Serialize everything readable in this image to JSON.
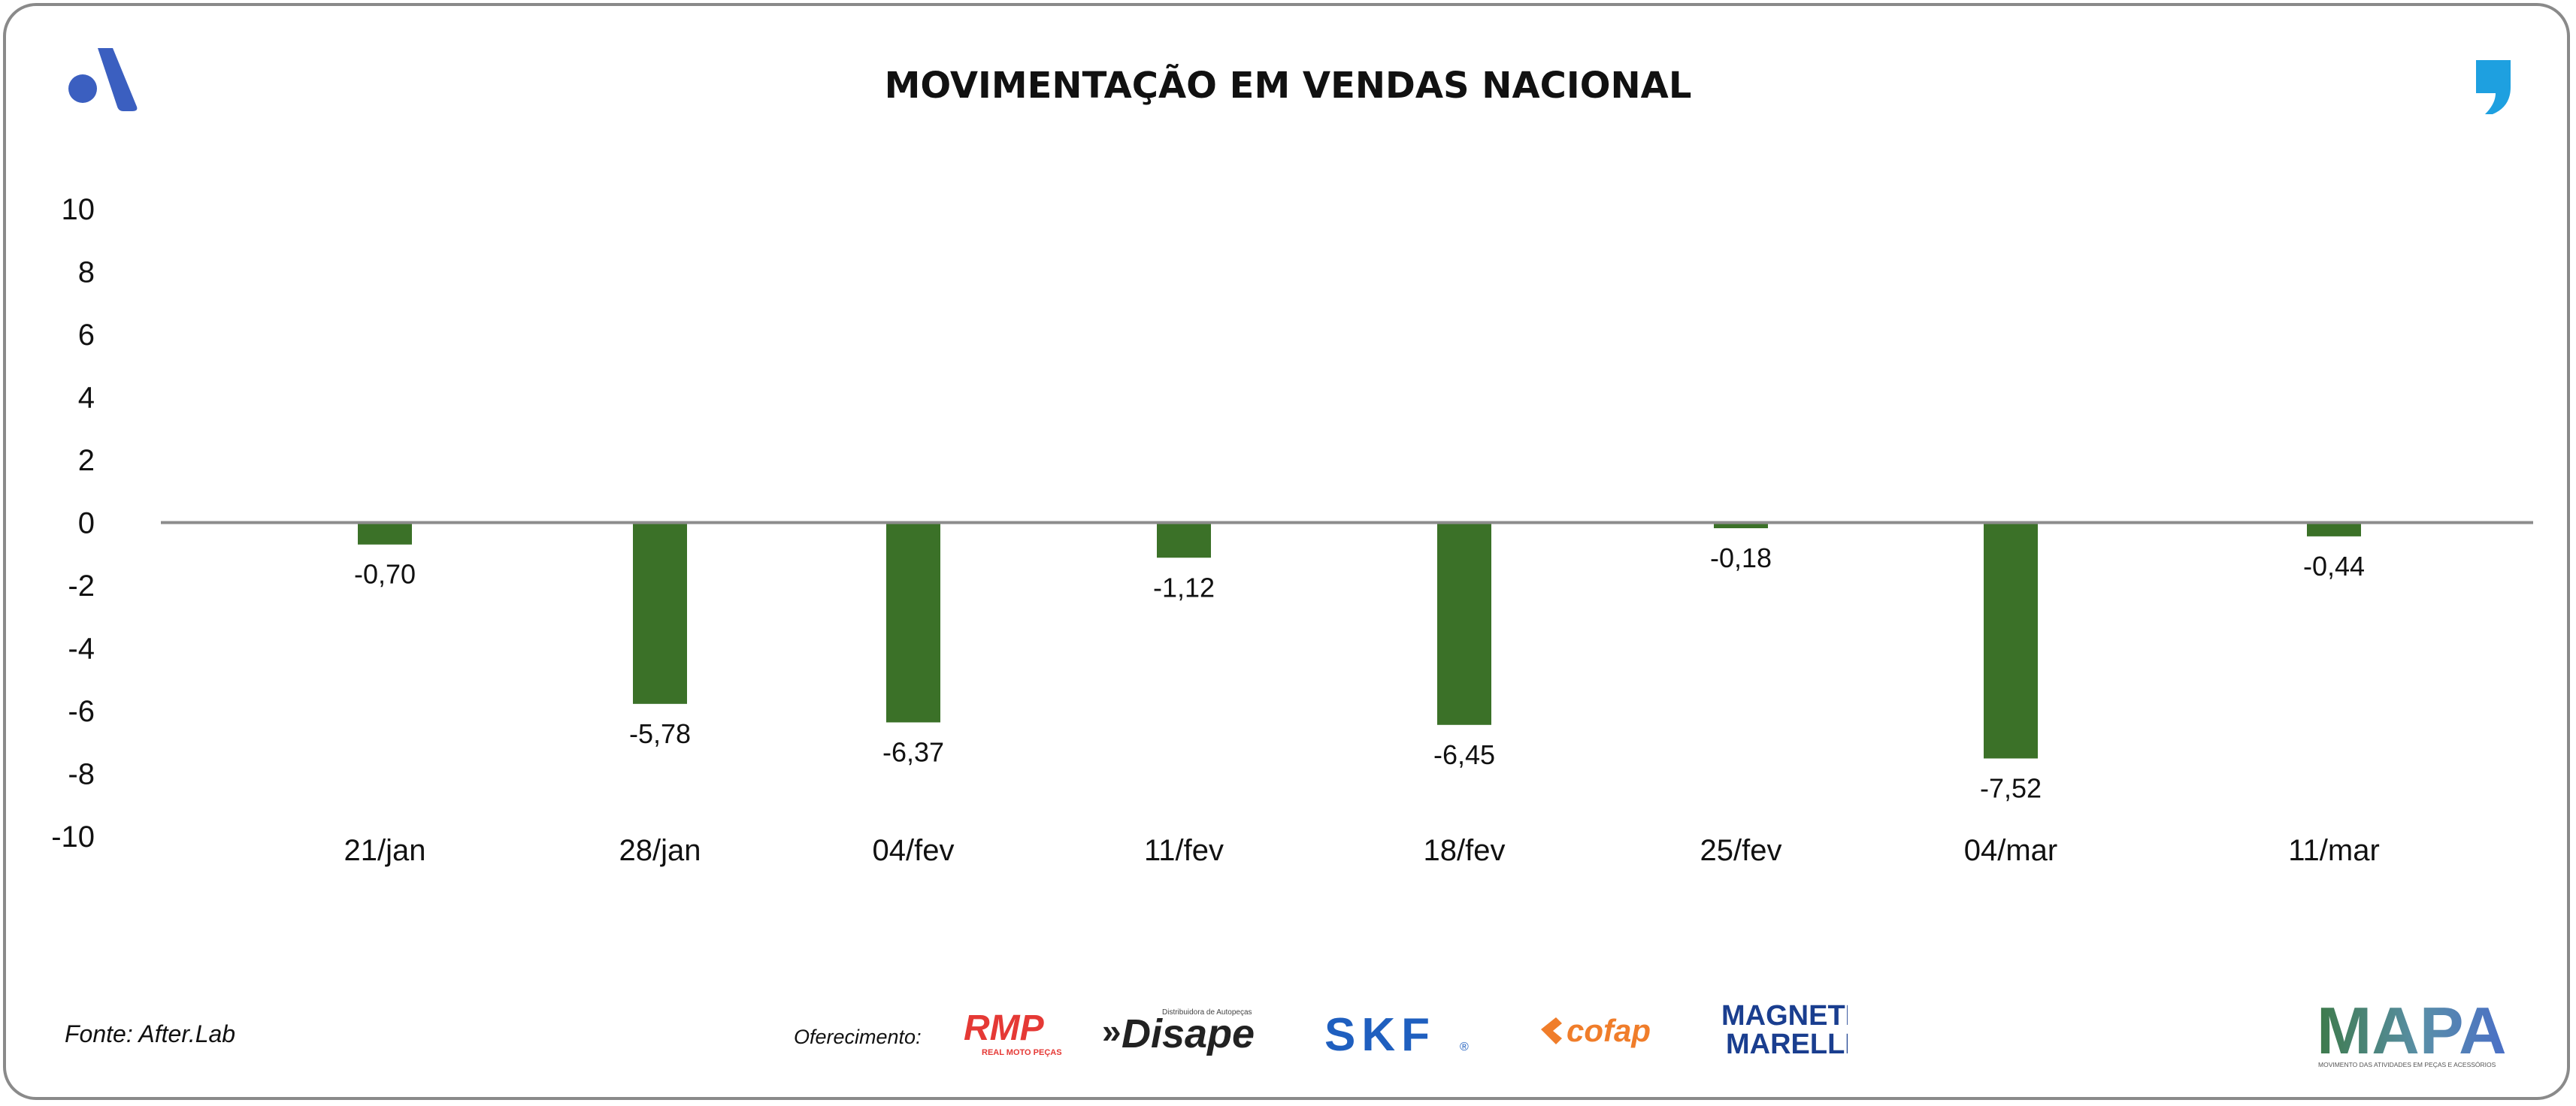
{
  "header": {
    "title": "MOVIMENTAÇÃO EM VENDAS NACIONAL"
  },
  "footer": {
    "source": "Fonte: After.Lab",
    "sponsor_label": "Oferecimento:",
    "sponsors": [
      {
        "name": "RMP",
        "sub": "REAL MOTO PEÇAS",
        "color": "#e53935"
      },
      {
        "name": "Disape",
        "sub": "Distribuidora de Autopeças",
        "color": "#222222"
      },
      {
        "name": "SKF",
        "mark": "®",
        "color": "#1f5fbf"
      },
      {
        "name": "cofap",
        "color": "#f07d2a"
      },
      {
        "name": "MAGNETI",
        "name2": "MARELLI",
        "color": "#1a3e8f"
      }
    ],
    "mapa": {
      "name": "MAPA",
      "tagline": "MOVIMENTO DAS ATIVIDADES EM PEÇAS E ACESSÓRIOS"
    }
  },
  "colors": {
    "bar": "#3b7128",
    "zero_line": "#8c8c8c",
    "text": "#111111",
    "brand_blue": "#3b5fc0",
    "quote_blue": "#1ea0e0"
  },
  "icons": [
    "brand-logo-icon",
    "quote-mark-icon"
  ],
  "chart_data": {
    "type": "bar",
    "categories": [
      "21/jan",
      "28/jan",
      "04/fev",
      "11/fev",
      "18/fev",
      "25/fev",
      "04/mar",
      "11/mar"
    ],
    "values": [
      -0.7,
      -5.78,
      -6.37,
      -1.12,
      -6.45,
      -0.18,
      -7.52,
      -0.44
    ],
    "value_labels": [
      "-0,70",
      "-5,78",
      "-6,37",
      "-1,12",
      "-6,45",
      "-0,18",
      "-7,52",
      "-0,44"
    ],
    "ylim": [
      -10,
      10
    ],
    "yticks": [
      10,
      8,
      6,
      4,
      2,
      0,
      -2,
      -4,
      -6,
      -8,
      -10
    ],
    "title": "MOVIMENTAÇÃO EM VENDAS NACIONAL",
    "xlabel": "",
    "ylabel": "",
    "grid": false,
    "legend": "none"
  }
}
